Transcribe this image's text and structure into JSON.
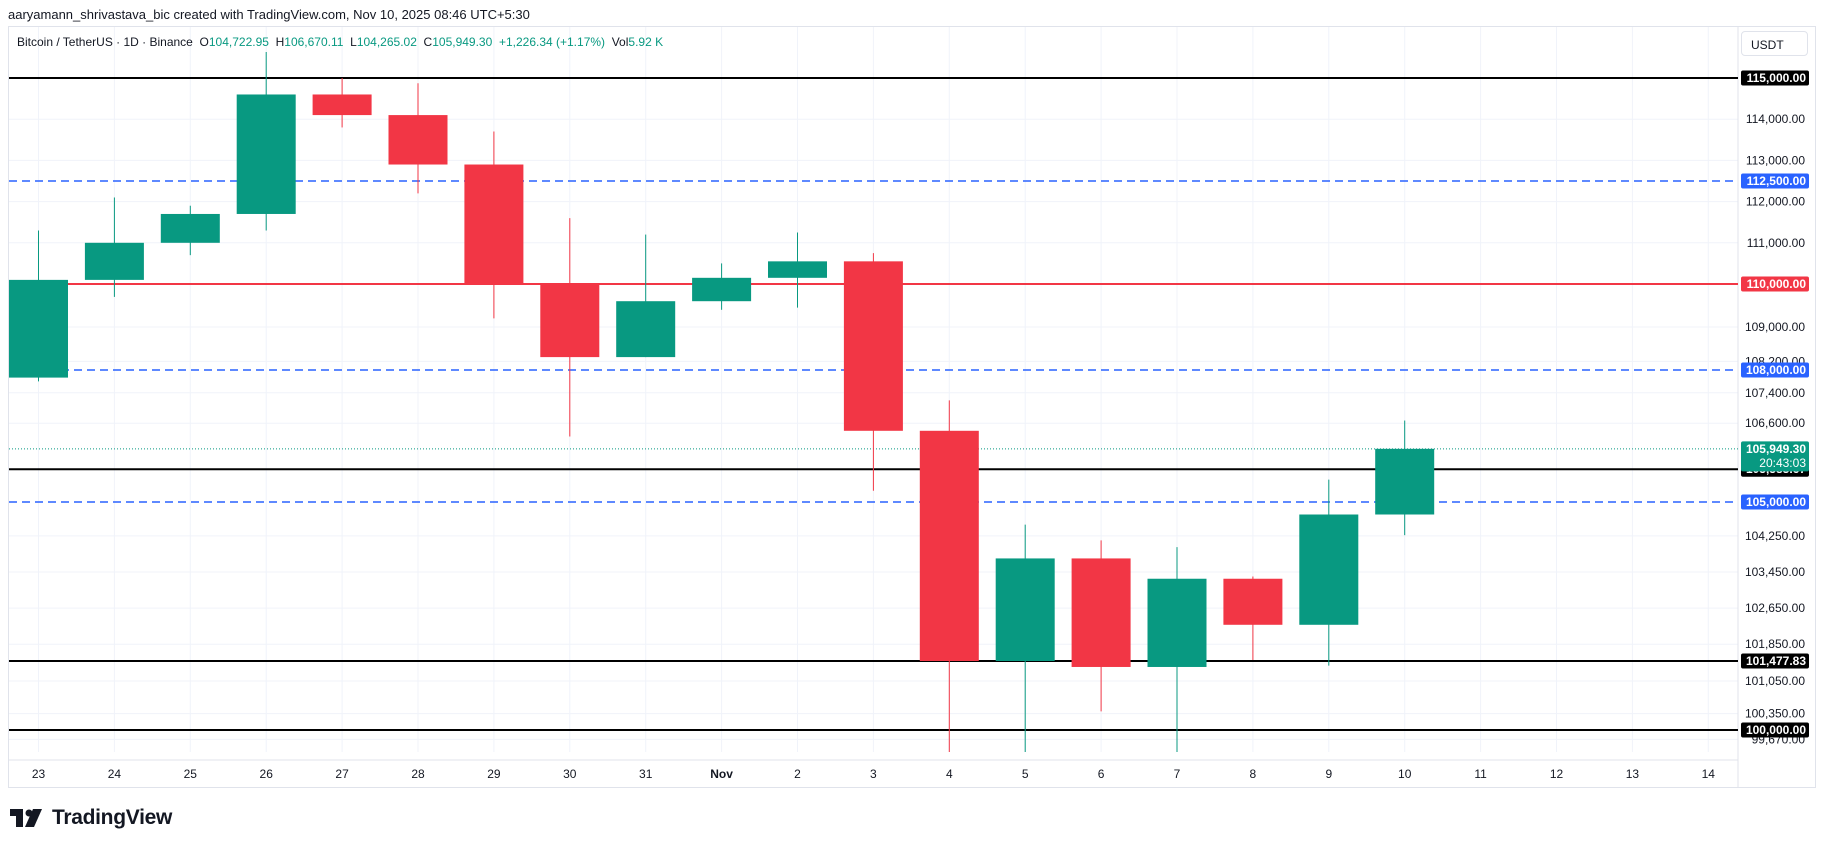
{
  "header": {
    "caption": "aaryamann_shrivastava_bic created with TradingView.com, Nov 10, 2025 08:46 UTC+5:30"
  },
  "legend": {
    "symbol": "Bitcoin / TetherUS · 1D · Binance",
    "o_label": "O",
    "o_value": "104,722.95",
    "h_label": "H",
    "h_value": "106,670.11",
    "l_label": "L",
    "l_value": "104,265.02",
    "c_label": "C",
    "c_value": "105,949.30",
    "change": "+1,226.34 (+1.17%)",
    "vol_label": "Vol",
    "vol_value": "5.92 K"
  },
  "currency_button": {
    "label": "USDT"
  },
  "footer": {
    "brand": "TradingView",
    "logo_icon": "tradingview-logo-icon"
  },
  "chart_data": {
    "type": "candlestick",
    "colors": {
      "up": "#089981",
      "down": "#f23645",
      "support_line": "#000000",
      "resistance_line": "#f23645",
      "dashed_level": "#2962ff",
      "grid": "#f0f3fa"
    },
    "x_tick_labels": [
      "23",
      "24",
      "25",
      "26",
      "27",
      "28",
      "29",
      "30",
      "31",
      "Nov",
      "2",
      "3",
      "4",
      "5",
      "6",
      "7",
      "8",
      "9",
      "10",
      "11",
      "12",
      "13",
      "14"
    ],
    "y_tick_labels": [
      {
        "value": 114000,
        "label": "114,000.00"
      },
      {
        "value": 113000,
        "label": "113,000.00"
      },
      {
        "value": 112000,
        "label": "112,000.00"
      },
      {
        "value": 111000,
        "label": "111,000.00"
      },
      {
        "value": 109000,
        "label": "109,000.00"
      },
      {
        "value": 108200,
        "label": "108,200.00"
      },
      {
        "value": 107400,
        "label": "107,400.00"
      },
      {
        "value": 106600,
        "label": "106,600.00"
      },
      {
        "value": 104250,
        "label": "104,250.00"
      },
      {
        "value": 103450,
        "label": "103,450.00"
      },
      {
        "value": 102650,
        "label": "102,650.00"
      },
      {
        "value": 101850,
        "label": "101,850.00"
      },
      {
        "value": 101050,
        "label": "101,050.00"
      },
      {
        "value": 100350,
        "label": "100,350.00"
      },
      {
        "value": 99670,
        "label": "99,670.00"
      }
    ],
    "candles": [
      {
        "date": "23",
        "open": 107800,
        "high": 111300,
        "low": 107700,
        "close": 110100
      },
      {
        "date": "24",
        "open": 110100,
        "high": 112100,
        "low": 109700,
        "close": 111000
      },
      {
        "date": "25",
        "open": 111000,
        "high": 111900,
        "low": 110700,
        "close": 111700
      },
      {
        "date": "26",
        "open": 111700,
        "high": 115500,
        "low": 111300,
        "close": 114600
      },
      {
        "date": "27",
        "open": 114600,
        "high": 116000,
        "low": 113800,
        "close": 114100
      },
      {
        "date": "28",
        "open": 114100,
        "high": 116100,
        "low": 112200,
        "close": 112900
      },
      {
        "date": "29",
        "open": 112900,
        "high": 113700,
        "low": 109200,
        "close": 110000
      },
      {
        "date": "30",
        "open": 110000,
        "high": 111600,
        "low": 106250,
        "close": 108300
      },
      {
        "date": "31",
        "open": 108300,
        "high": 111200,
        "low": 108300,
        "close": 109600
      },
      {
        "date": "Nov",
        "open": 109600,
        "high": 110500,
        "low": 109400,
        "close": 110150
      },
      {
        "date": "2",
        "open": 110150,
        "high": 111250,
        "low": 109450,
        "close": 110550
      },
      {
        "date": "3",
        "open": 110550,
        "high": 110750,
        "low": 105200,
        "close": 106400
      },
      {
        "date": "4",
        "open": 106400,
        "high": 107200,
        "low": 98950,
        "close": 101477.83
      },
      {
        "date": "5",
        "open": 101477.83,
        "high": 104500,
        "low": 98950,
        "close": 103750
      },
      {
        "date": "6",
        "open": 103750,
        "high": 104150,
        "low": 100400,
        "close": 101350
      },
      {
        "date": "7",
        "open": 101350,
        "high": 104000,
        "low": 98950,
        "close": 103300
      },
      {
        "date": "8",
        "open": 103300,
        "high": 103350,
        "low": 101500,
        "close": 102280
      },
      {
        "date": "9",
        "open": 102280,
        "high": 105400,
        "low": 101380,
        "close": 104722.95
      },
      {
        "date": "10",
        "open": 104722.95,
        "high": 106670.11,
        "low": 104265.02,
        "close": 105949.3
      }
    ],
    "horizontal_lines": [
      {
        "value": 115000,
        "label": "115,000.00",
        "style": "solid",
        "color": "#000000"
      },
      {
        "value": 112500,
        "label": "112,500.00",
        "style": "dashed",
        "color": "#2962ff"
      },
      {
        "value": 110000,
        "label": "110,000.00",
        "style": "solid",
        "color": "#f23645"
      },
      {
        "value": 108000,
        "label": "108,000.00",
        "style": "dashed",
        "color": "#2962ff"
      },
      {
        "value": 105585.67,
        "label": "105,585.67",
        "style": "solid",
        "color": "#000000"
      },
      {
        "value": 105000,
        "label": "105,000.00",
        "style": "dashed",
        "color": "#2962ff"
      },
      {
        "value": 101477.83,
        "label": "101,477.83",
        "style": "solid",
        "color": "#000000"
      },
      {
        "value": 100000,
        "label": "100,000.00",
        "style": "solid",
        "color": "#000000"
      }
    ],
    "last_price": {
      "value": 105949.3,
      "label": "105,949.30",
      "countdown": "20:43:03",
      "color": "#089981"
    }
  }
}
